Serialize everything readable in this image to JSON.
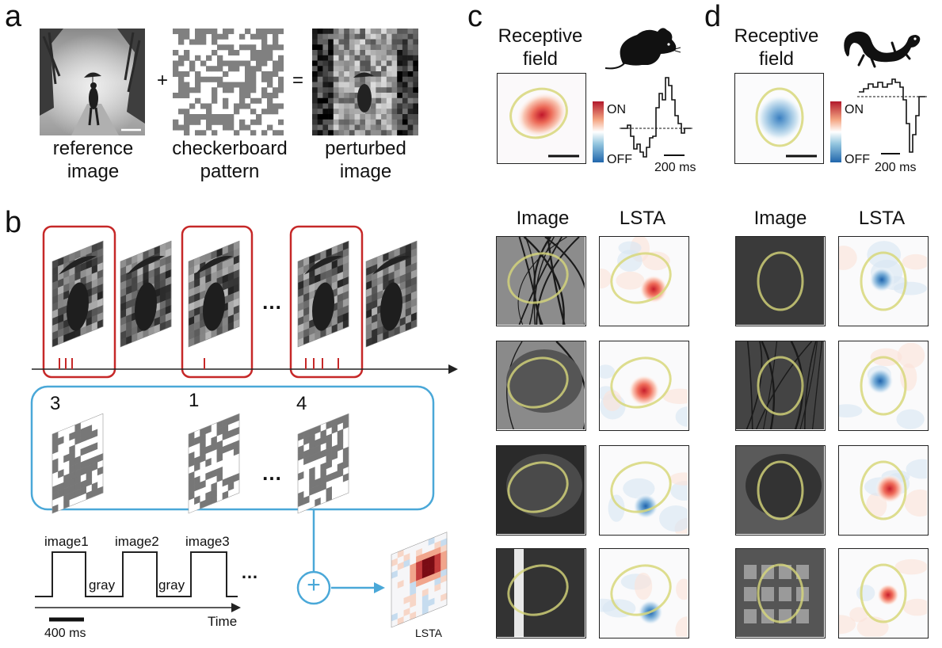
{
  "panels": {
    "a": {
      "label": "a",
      "plus": "+",
      "equals": "=",
      "captions": [
        {
          "line1": "reference",
          "line2": "image"
        },
        {
          "line1": "checkerboard",
          "line2": "pattern"
        },
        {
          "line1": "perturbed",
          "line2": "image"
        }
      ]
    },
    "b": {
      "label": "b",
      "counts": [
        "3",
        "1",
        "4"
      ],
      "ellipsis": "…",
      "timeline": {
        "image_labels": [
          "image1",
          "image2",
          "image3"
        ],
        "gray_labels": [
          "gray",
          "gray"
        ],
        "ellipsis": "…",
        "time_label": "Time",
        "scale_label": "400 ms"
      },
      "sum_symbol": "+",
      "lsta_label": "LSTA",
      "spike_groups": [
        3,
        1,
        4
      ]
    },
    "c": {
      "label": "c",
      "title_line1": "Receptive",
      "title_line2": "field",
      "animal_icon": "mouse-icon",
      "colorbar_on": "ON",
      "colorbar_off": "OFF",
      "time_scale": "200 ms",
      "col_image": "Image",
      "col_lsta": "LSTA"
    },
    "d": {
      "label": "d",
      "title_line1": "Receptive",
      "title_line2": "field",
      "animal_icon": "salamander-icon",
      "colorbar_on": "ON",
      "colorbar_off": "OFF",
      "time_scale": "200 ms",
      "col_image": "Image",
      "col_lsta": "LSTA"
    }
  },
  "colors": {
    "highlight_red": "#c62828",
    "blue_frame": "#4aa8d8",
    "rf_ellipse": "#d7d77a",
    "on_color": "#b2182b",
    "off_color": "#2166ac"
  }
}
